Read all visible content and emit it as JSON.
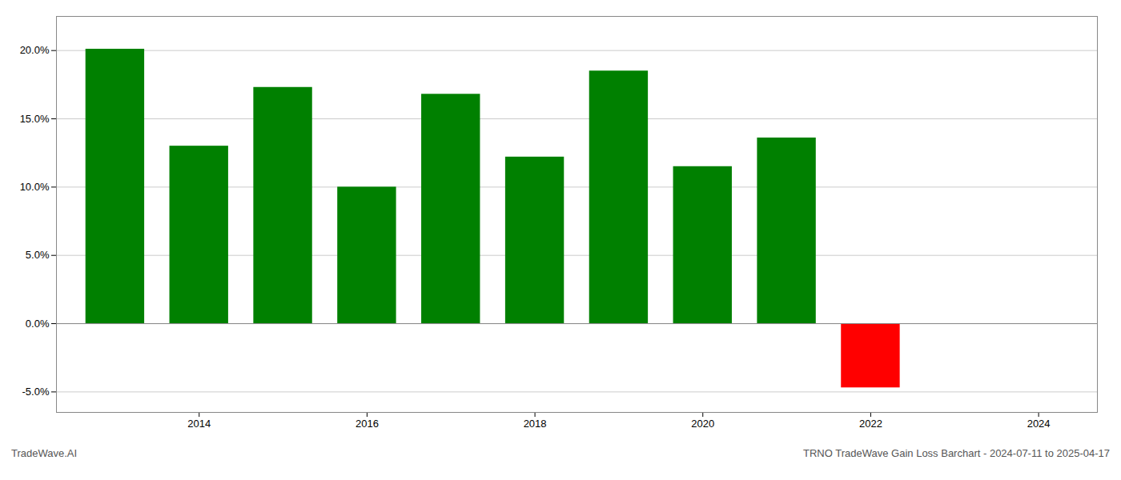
{
  "chart_data": {
    "type": "bar",
    "title": "TRNO TradeWave Gain Loss Barchart - 2024-07-11 to 2025-04-17",
    "annotations": [
      "TradeWave.AI"
    ],
    "x": [
      2013,
      2014,
      2015,
      2016,
      2017,
      2018,
      2019,
      2020,
      2021,
      2022
    ],
    "values": [
      20.1,
      13.0,
      17.3,
      10.0,
      16.8,
      12.2,
      18.5,
      11.5,
      13.6,
      -4.7
    ],
    "colors": [
      "#008000",
      "#008000",
      "#008000",
      "#008000",
      "#008000",
      "#008000",
      "#008000",
      "#008000",
      "#008000",
      "#ff0000"
    ],
    "xlim": [
      2012.3,
      2024.7
    ],
    "xticks": [
      2014,
      2016,
      2018,
      2020,
      2022,
      2024
    ],
    "ylim": [
      -6.5,
      22.5
    ],
    "yticks": [
      {
        "value": -5.0,
        "label": "-5.0%"
      },
      {
        "value": 0.0,
        "label": "0.0%"
      },
      {
        "value": 5.0,
        "label": "5.0%"
      },
      {
        "value": 10.0,
        "label": "10.0%"
      },
      {
        "value": 15.0,
        "label": "15.0%"
      },
      {
        "value": 20.0,
        "label": "20.0%"
      }
    ],
    "grid": true
  }
}
